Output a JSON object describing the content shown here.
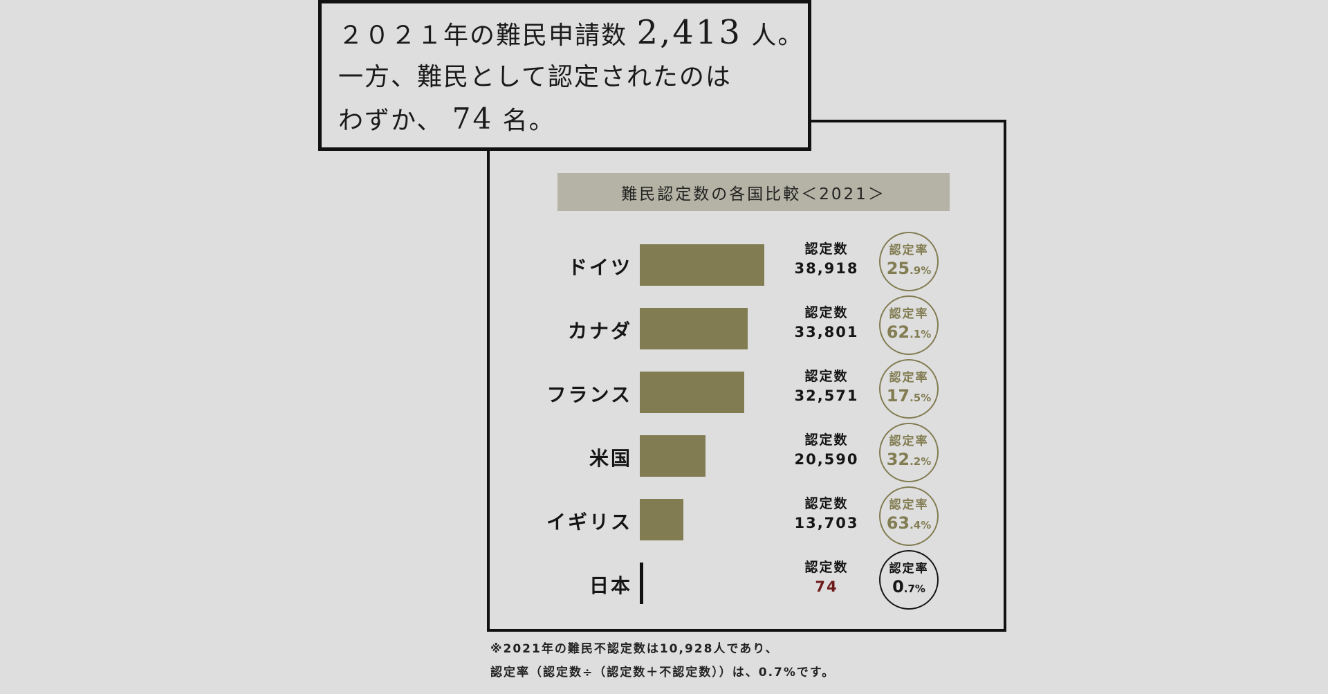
{
  "headline": {
    "line1_pre": "２０２１年の難民申請数",
    "line1_num": "2,413",
    "line1_post": "人。",
    "line2": "一方、難民として認定されたのは",
    "line3_pre": "わずか、",
    "line3_num": "74",
    "line3_post": "名。"
  },
  "chart_data": {
    "type": "bar",
    "title": "難民認定数の各国比較＜2021＞",
    "count_label": "認定数",
    "rate_label": "認定率",
    "categories": [
      "ドイツ",
      "カナダ",
      "フランス",
      "米国",
      "イギリス",
      "日本"
    ],
    "counts": [
      38918,
      33801,
      32571,
      20590,
      13703,
      74
    ],
    "count_labels": [
      "38,918",
      "33,801",
      "32,571",
      "20,590",
      "13,703",
      "74"
    ],
    "rates": [
      {
        "int": "25",
        "dec": ".9%"
      },
      {
        "int": "62",
        "dec": ".1%"
      },
      {
        "int": "17",
        "dec": ".5%"
      },
      {
        "int": "32",
        "dec": ".2%"
      },
      {
        "int": "63",
        "dec": ".4%"
      },
      {
        "int": "0",
        "dec": ".7%"
      }
    ],
    "bar_color": "#827c52",
    "highlight_color": "#111111",
    "highlight_value_color": "#6e1a1a"
  },
  "footnote": {
    "line1": "※2021年の難民不認定数は10,928人であり、",
    "line2": "認定率（認定数÷（認定数＋不認定数））は、0.7%です。"
  }
}
